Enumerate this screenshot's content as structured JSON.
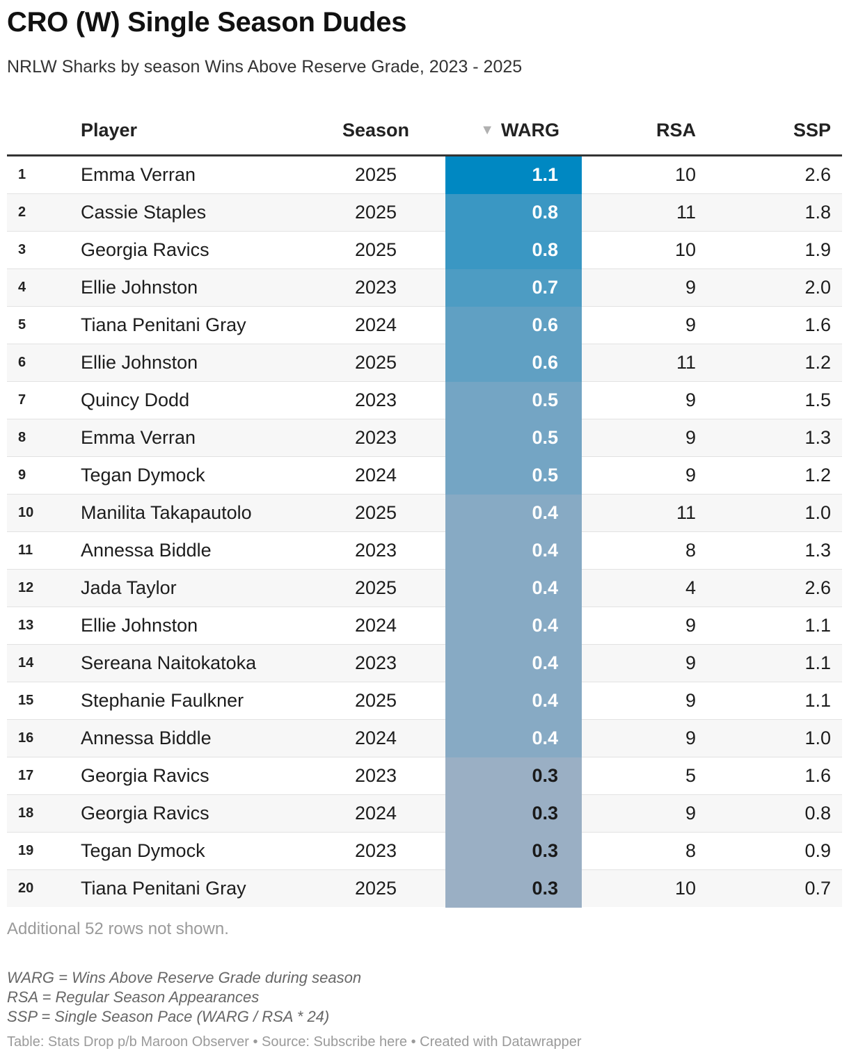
{
  "title": "CRO (W) Single Season Dudes",
  "subtitle": "NRLW Sharks by season Wins Above Reserve Grade, 2023 - 2025",
  "columns": {
    "player": "Player",
    "season": "Season",
    "warg": "WARG",
    "rsa": "RSA",
    "ssp": "SSP",
    "sort_icon": "▼"
  },
  "chart_data": {
    "type": "table",
    "columns": [
      "Player",
      "Season",
      "WARG",
      "RSA",
      "SSP"
    ],
    "sorted_by": "WARG",
    "sort_order": "descending",
    "highlight_color_max": "#0088c2",
    "highlight_color_min": "#9aafc4",
    "rows": [
      {
        "rank": "1",
        "player": "Emma Verran",
        "season": "2025",
        "warg": "1.1",
        "rsa": "10",
        "ssp": "2.6"
      },
      {
        "rank": "2",
        "player": "Cassie Staples",
        "season": "2025",
        "warg": "0.8",
        "rsa": "11",
        "ssp": "1.8"
      },
      {
        "rank": "3",
        "player": "Georgia Ravics",
        "season": "2025",
        "warg": "0.8",
        "rsa": "10",
        "ssp": "1.9"
      },
      {
        "rank": "4",
        "player": "Ellie Johnston",
        "season": "2023",
        "warg": "0.7",
        "rsa": "9",
        "ssp": "2.0"
      },
      {
        "rank": "5",
        "player": "Tiana Penitani Gray",
        "season": "2024",
        "warg": "0.6",
        "rsa": "9",
        "ssp": "1.6"
      },
      {
        "rank": "6",
        "player": "Ellie Johnston",
        "season": "2025",
        "warg": "0.6",
        "rsa": "11",
        "ssp": "1.2"
      },
      {
        "rank": "7",
        "player": "Quincy Dodd",
        "season": "2023",
        "warg": "0.5",
        "rsa": "9",
        "ssp": "1.5"
      },
      {
        "rank": "8",
        "player": "Emma Verran",
        "season": "2023",
        "warg": "0.5",
        "rsa": "9",
        "ssp": "1.3"
      },
      {
        "rank": "9",
        "player": "Tegan Dymock",
        "season": "2024",
        "warg": "0.5",
        "rsa": "9",
        "ssp": "1.2"
      },
      {
        "rank": "10",
        "player": "Manilita Takapautolo",
        "season": "2025",
        "warg": "0.4",
        "rsa": "11",
        "ssp": "1.0"
      },
      {
        "rank": "11",
        "player": "Annessa Biddle",
        "season": "2023",
        "warg": "0.4",
        "rsa": "8",
        "ssp": "1.3"
      },
      {
        "rank": "12",
        "player": "Jada Taylor",
        "season": "2025",
        "warg": "0.4",
        "rsa": "4",
        "ssp": "2.6"
      },
      {
        "rank": "13",
        "player": "Ellie Johnston",
        "season": "2024",
        "warg": "0.4",
        "rsa": "9",
        "ssp": "1.1"
      },
      {
        "rank": "14",
        "player": "Sereana Naitokatoka",
        "season": "2023",
        "warg": "0.4",
        "rsa": "9",
        "ssp": "1.1"
      },
      {
        "rank": "15",
        "player": "Stephanie Faulkner",
        "season": "2025",
        "warg": "0.4",
        "rsa": "9",
        "ssp": "1.1"
      },
      {
        "rank": "16",
        "player": "Annessa Biddle",
        "season": "2024",
        "warg": "0.4",
        "rsa": "9",
        "ssp": "1.0"
      },
      {
        "rank": "17",
        "player": "Georgia Ravics",
        "season": "2023",
        "warg": "0.3",
        "rsa": "5",
        "ssp": "1.6"
      },
      {
        "rank": "18",
        "player": "Georgia Ravics",
        "season": "2024",
        "warg": "0.3",
        "rsa": "9",
        "ssp": "0.8"
      },
      {
        "rank": "19",
        "player": "Tegan Dymock",
        "season": "2023",
        "warg": "0.3",
        "rsa": "8",
        "ssp": "0.9"
      },
      {
        "rank": "20",
        "player": "Tiana Penitani Gray",
        "season": "2025",
        "warg": "0.3",
        "rsa": "10",
        "ssp": "0.7"
      }
    ]
  },
  "rows_not_shown": "Additional 52 rows not shown.",
  "notes": [
    "WARG = Wins Above Reserve Grade during season",
    "RSA = Regular Season Appearances",
    "SSP = Single Season Pace (WARG / RSA * 24)"
  ],
  "source": "Table: Stats Drop p/b Maroon Observer • Source: Subscribe here • Created with Datawrapper"
}
